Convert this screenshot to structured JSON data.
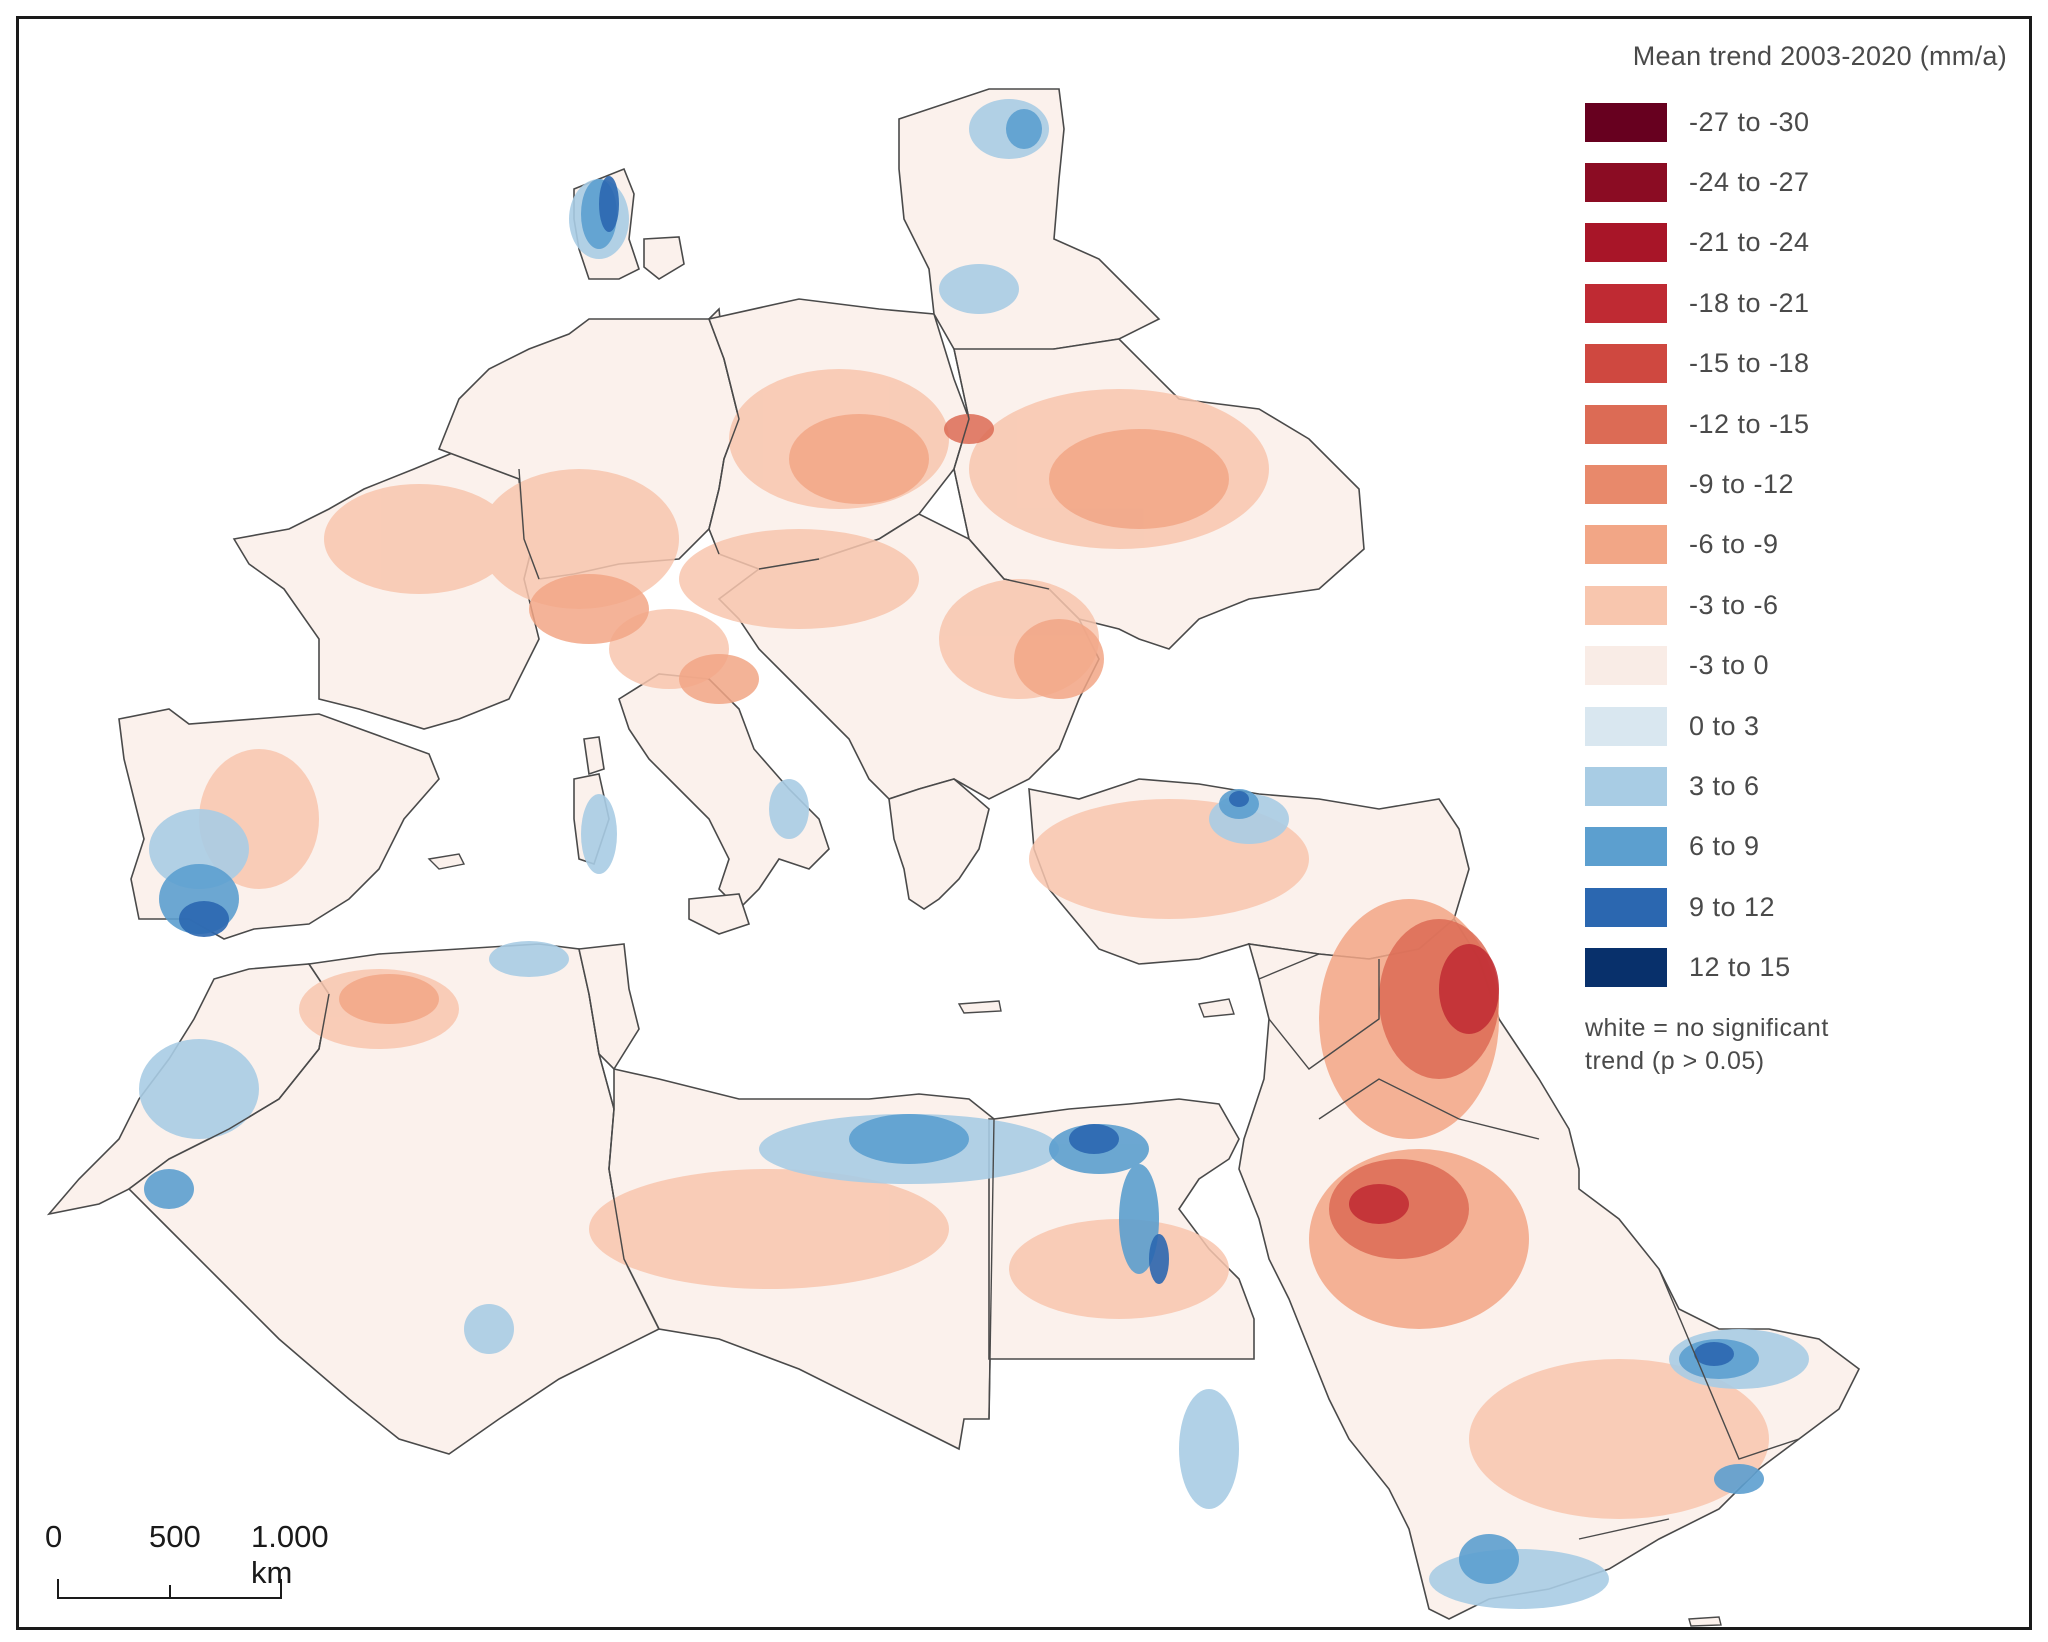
{
  "legend": {
    "title": "Mean trend 2003-2020 (mm/a)",
    "items": [
      {
        "label": "-27 to -30",
        "color": "#67001f"
      },
      {
        "label": "-24 to -27",
        "color": "#8b0c23"
      },
      {
        "label": "-21 to -24",
        "color": "#a81528"
      },
      {
        "label": "-18 to -21",
        "color": "#bf2a33"
      },
      {
        "label": "-15 to -18",
        "color": "#cf4840"
      },
      {
        "label": "-12 to -15",
        "color": "#dc6b55"
      },
      {
        "label": "-9 to -12",
        "color": "#e8896b"
      },
      {
        "label": "-6 to -9",
        "color": "#f2a686"
      },
      {
        "label": "-3 to -6",
        "color": "#f8c6ae"
      },
      {
        "label": "-3 to 0",
        "color": "#f9ece6"
      },
      {
        "label": "0 to 3",
        "color": "#d9e7f0"
      },
      {
        "label": "3 to 6",
        "color": "#a8cce4"
      },
      {
        "label": "6 to 9",
        "color": "#5c9fcf"
      },
      {
        "label": "9 to 12",
        "color": "#2b67b0"
      },
      {
        "label": "12 to 15",
        "color": "#08306b"
      }
    ],
    "note_line1": "white = no significant",
    "note_line2": "trend (p > 0.05)"
  },
  "scale_bar": {
    "labels": [
      "0",
      "500",
      "1.000 km"
    ]
  }
}
